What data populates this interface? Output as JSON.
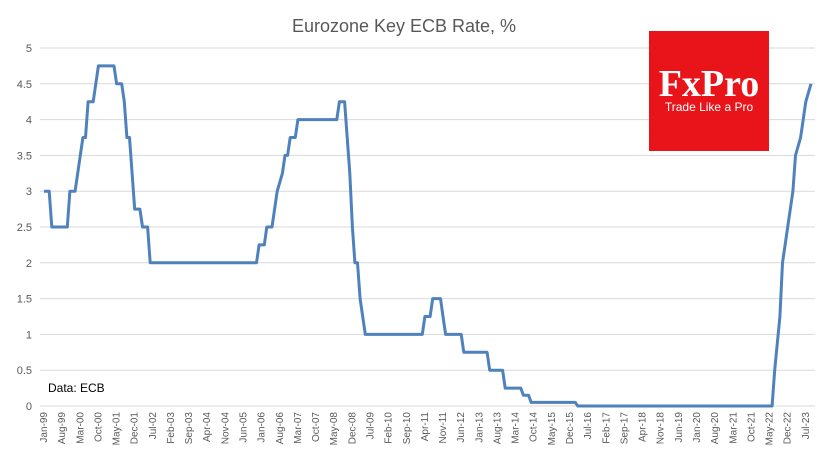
{
  "chart_data": {
    "type": "line",
    "title": "Eurozone  Key ECB Rate, %",
    "xlabel": "",
    "ylabel": "",
    "ylim": [
      0,
      5
    ],
    "yticks": [
      "0",
      "0.5",
      "1",
      "1.5",
      "2",
      "2.5",
      "3",
      "3.5",
      "4",
      "4.5",
      "5"
    ],
    "grid": true,
    "x_tick_labels": [
      "Jan-99",
      "Aug-99",
      "Mar-00",
      "Oct-00",
      "May-01",
      "Dec-01",
      "Jul-02",
      "Feb-03",
      "Sep-03",
      "Apr-04",
      "Nov-04",
      "Jun-05",
      "Jan-06",
      "Aug-06",
      "Mar-07",
      "Oct-07",
      "May-08",
      "Dec-08",
      "Jul-09",
      "Feb-10",
      "Sep-10",
      "Apr-11",
      "Nov-11",
      "Jun-12",
      "Jan-13",
      "Aug-13",
      "Mar-14",
      "Oct-14",
      "May-15",
      "Dec-15",
      "Jul-16",
      "Feb-17",
      "Sep-17",
      "Apr-18",
      "Nov-18",
      "Jun-19",
      "Jan-20",
      "Aug-20",
      "Mar-21",
      "Oct-21",
      "May-22",
      "Dec-22",
      "Jul-23"
    ],
    "series": [
      {
        "color": "#4f81bd",
        "points": [
          [
            "1999-01",
            3.0
          ],
          [
            "1999-03",
            3.0
          ],
          [
            "1999-04",
            2.5
          ],
          [
            "1999-10",
            2.5
          ],
          [
            "1999-11",
            3.0
          ],
          [
            "2000-01",
            3.0
          ],
          [
            "2000-02",
            3.25
          ],
          [
            "2000-03",
            3.5
          ],
          [
            "2000-04",
            3.75
          ],
          [
            "2000-05",
            3.75
          ],
          [
            "2000-06",
            4.25
          ],
          [
            "2000-08",
            4.25
          ],
          [
            "2000-09",
            4.5
          ],
          [
            "2000-10",
            4.75
          ],
          [
            "2001-04",
            4.75
          ],
          [
            "2001-05",
            4.5
          ],
          [
            "2001-07",
            4.5
          ],
          [
            "2001-08",
            4.25
          ],
          [
            "2001-09",
            3.75
          ],
          [
            "2001-10",
            3.75
          ],
          [
            "2001-11",
            3.25
          ],
          [
            "2001-12",
            2.75
          ],
          [
            "2002-02",
            2.75
          ],
          [
            "2002-03",
            2.5
          ],
          [
            "2002-05",
            2.5
          ],
          [
            "2002-06",
            2.0
          ],
          [
            "2005-11",
            2.0
          ],
          [
            "2005-12",
            2.25
          ],
          [
            "2006-02",
            2.25
          ],
          [
            "2006-03",
            2.5
          ],
          [
            "2006-05",
            2.5
          ],
          [
            "2006-06",
            2.75
          ],
          [
            "2006-07",
            3.0
          ],
          [
            "2006-09",
            3.25
          ],
          [
            "2006-10",
            3.5
          ],
          [
            "2006-11",
            3.5
          ],
          [
            "2006-12",
            3.75
          ],
          [
            "2007-02",
            3.75
          ],
          [
            "2007-03",
            4.0
          ],
          [
            "2008-06",
            4.0
          ],
          [
            "2008-07",
            4.25
          ],
          [
            "2008-09",
            4.25
          ],
          [
            "2008-10",
            3.75
          ],
          [
            "2008-11",
            3.25
          ],
          [
            "2008-12",
            2.5
          ],
          [
            "2009-01",
            2.0
          ],
          [
            "2009-02",
            2.0
          ],
          [
            "2009-03",
            1.5
          ],
          [
            "2009-04",
            1.25
          ],
          [
            "2009-05",
            1.0
          ],
          [
            "2011-03",
            1.0
          ],
          [
            "2011-04",
            1.25
          ],
          [
            "2011-06",
            1.25
          ],
          [
            "2011-07",
            1.5
          ],
          [
            "2011-10",
            1.5
          ],
          [
            "2011-11",
            1.25
          ],
          [
            "2011-12",
            1.0
          ],
          [
            "2012-06",
            1.0
          ],
          [
            "2012-07",
            0.75
          ],
          [
            "2013-04",
            0.75
          ],
          [
            "2013-05",
            0.5
          ],
          [
            "2013-10",
            0.5
          ],
          [
            "2013-11",
            0.25
          ],
          [
            "2014-05",
            0.25
          ],
          [
            "2014-06",
            0.15
          ],
          [
            "2014-08",
            0.15
          ],
          [
            "2014-09",
            0.05
          ],
          [
            "2016-02",
            0.05
          ],
          [
            "2016-03",
            0.0
          ],
          [
            "2022-06",
            0.0
          ],
          [
            "2022-07",
            0.5
          ],
          [
            "2022-09",
            1.25
          ],
          [
            "2022-10",
            2.0
          ],
          [
            "2022-12",
            2.5
          ],
          [
            "2023-02",
            3.0
          ],
          [
            "2023-03",
            3.5
          ],
          [
            "2023-05",
            3.75
          ],
          [
            "2023-06",
            4.0
          ],
          [
            "2023-07",
            4.25
          ],
          [
            "2023-09",
            4.5
          ]
        ]
      }
    ]
  },
  "source_note": "Data: ECB",
  "brand": {
    "name": "FxPro",
    "tagline": "Trade Like a Pro",
    "bg_color": "#e8141a"
  }
}
